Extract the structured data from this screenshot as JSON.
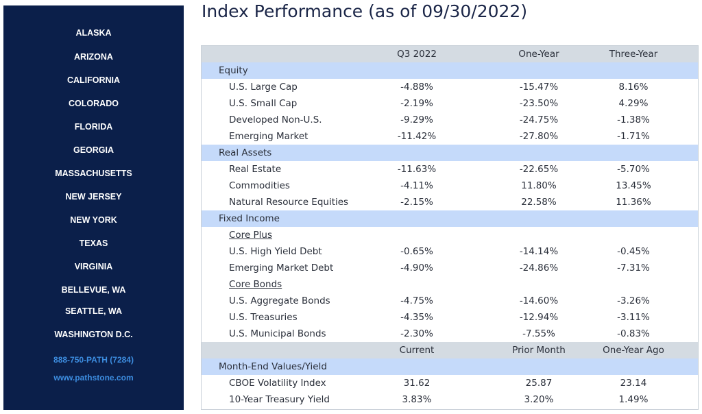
{
  "sidebar": {
    "items": [
      "ALASKA",
      "ARIZONA",
      "CALIFORNIA",
      "COLORADO",
      "FLORIDA",
      "GEORGIA",
      "MASSACHUSETTS",
      "NEW JERSEY",
      "NEW YORK",
      "TEXAS",
      "VIRGINIA",
      "BELLEVUE, WA",
      "SEATTLE, WA",
      "WASHINGTON D.C."
    ],
    "phone": "888-750-PATH (7284)",
    "website": "www.pathstone.com"
  },
  "title": "Index Performance (as of 09/30/2022)",
  "table": {
    "header": [
      "",
      "Q3 2022",
      "One-Year",
      "Three-Year"
    ],
    "rows": [
      {
        "kind": "section",
        "label": "Equity"
      },
      {
        "kind": "data",
        "label": "U.S. Large Cap",
        "q3": "-4.88%",
        "one": "-15.47%",
        "three": "8.16%"
      },
      {
        "kind": "data",
        "label": "U.S. Small Cap",
        "q3": "-2.19%",
        "one": "-23.50%",
        "three": "4.29%"
      },
      {
        "kind": "data",
        "label": "Developed Non-U.S.",
        "q3": "-9.29%",
        "one": "-24.75%",
        "three": "-1.38%"
      },
      {
        "kind": "data",
        "label": "Emerging Market",
        "q3": "-11.42%",
        "one": "-27.80%",
        "three": "-1.71%"
      },
      {
        "kind": "section",
        "label": "Real Assets"
      },
      {
        "kind": "data",
        "label": "Real Estate",
        "q3": "-11.63%",
        "one": "-22.65%",
        "three": "-5.70%"
      },
      {
        "kind": "data",
        "label": "Commodities",
        "q3": "-4.11%",
        "one": "11.80%",
        "three": "13.45%"
      },
      {
        "kind": "data",
        "label": "Natural Resource Equities",
        "q3": "-2.15%",
        "one": "22.58%",
        "three": "11.36%"
      },
      {
        "kind": "section",
        "label": "Fixed Income"
      },
      {
        "kind": "sub",
        "label": "Core Plus"
      },
      {
        "kind": "data",
        "label": "U.S. High Yield Debt",
        "q3": "-0.65%",
        "one": "-14.14%",
        "three": "-0.45%"
      },
      {
        "kind": "data",
        "label": "Emerging Market Debt",
        "q3": "-4.90%",
        "one": "-24.86%",
        "three": "-7.31%"
      },
      {
        "kind": "sub",
        "label": "Core Bonds"
      },
      {
        "kind": "data",
        "label": "U.S. Aggregate Bonds",
        "q3": "-4.75%",
        "one": "-14.60%",
        "three": "-3.26%"
      },
      {
        "kind": "data",
        "label": "U.S. Treasuries",
        "q3": "-4.35%",
        "one": "-12.94%",
        "three": "-3.11%"
      },
      {
        "kind": "data",
        "label": "U.S. Municipal Bonds",
        "q3": "-2.30%",
        "one": "-7.55%",
        "three": "-0.83%"
      }
    ],
    "header2": [
      "",
      "Current",
      "Prior Month",
      "One-Year Ago"
    ],
    "rows2": [
      {
        "kind": "section",
        "label": "Month-End Values/Yield"
      },
      {
        "kind": "data",
        "label": "CBOE Volatility Index",
        "q3": "31.62",
        "one": "25.87",
        "three": "23.14"
      },
      {
        "kind": "data",
        "label": "10-Year Treasury Yield",
        "q3": "3.83%",
        "one": "3.20%",
        "three": "1.49%"
      }
    ]
  },
  "colors": {
    "sidebar_bg": "#0b1f4a",
    "contact_text": "#3d8de0",
    "header_bg": "#d4dbe2",
    "section_bg": "#c5dafa"
  }
}
